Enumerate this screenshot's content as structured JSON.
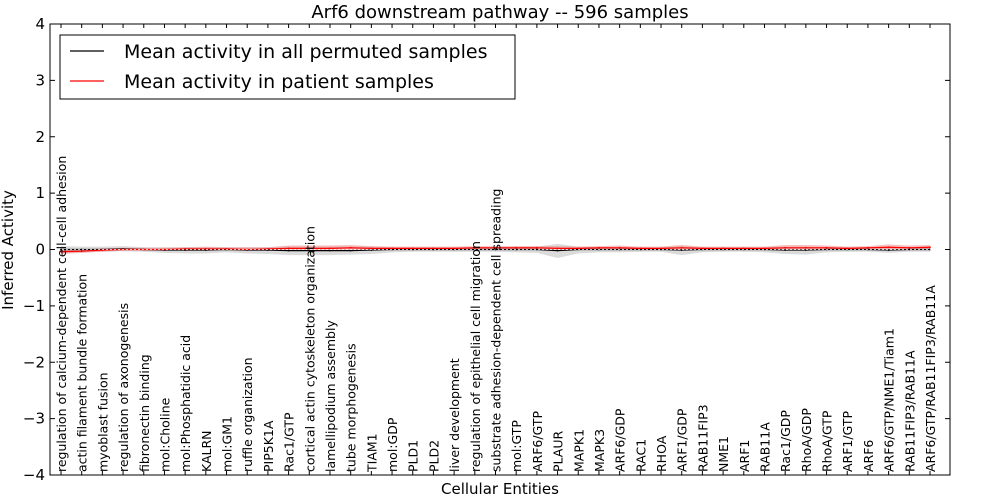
{
  "chart_data": {
    "type": "line",
    "title": "Arf6 downstream pathway -- 596 samples",
    "xlabel": "Cellular Entities",
    "ylabel": "Inferred Activity",
    "ylim": [
      -4,
      4
    ],
    "yticks": [
      -4,
      -3,
      -2,
      -1,
      0,
      1,
      2,
      3,
      4
    ],
    "ytick_labels": [
      "−4",
      "−3",
      "−2",
      "−1",
      "0",
      "1",
      "2",
      "3",
      "4"
    ],
    "legend_position": "top-left",
    "categories": [
      "regulation of calcium-dependent cell-cell adhesion",
      "actin filament bundle formation",
      "myoblast fusion",
      "regulation of axonogenesis",
      "fibronectin binding",
      "mol:Choline",
      "mol:Phosphatidic acid",
      "KALRN",
      "mol:GM1",
      "ruffle organization",
      "PIP5K1A",
      "Rac1/GTP",
      "cortical actin cytoskeleton organization",
      "lamellipodium assembly",
      "tube morphogenesis",
      "TIAM1",
      "mol:GDP",
      "PLD1",
      "PLD2",
      "liver development",
      "regulation of epithelial cell migration",
      "substrate adhesion-dependent cell spreading",
      "mol:GTP",
      "ARF6/GTP",
      "PLAUR",
      "MAPK1",
      "MAPK3",
      "ARF6/GDP",
      "RAC1",
      "RHOA",
      "ARF1/GDP",
      "RAB11FIP3",
      "NME1",
      "ARF1",
      "RAB11A",
      "Rac1/GDP",
      "RhoA/GDP",
      "RhoA/GTP",
      "ARF1/GTP",
      "ARF6",
      "ARF6/GTP/NME1/Tiam1",
      "RAB11FIP3/RAB11A",
      "ARF6/GTP/RAB11FIP3/RAB11A"
    ],
    "series": [
      {
        "name": "Mean activity in all permuted samples",
        "color": "#000000",
        "band_color": "#b0b0b0",
        "values": [
          0.0,
          0.0,
          0.0,
          0.01,
          0.0,
          -0.01,
          -0.01,
          -0.01,
          0.0,
          -0.01,
          -0.01,
          -0.02,
          -0.02,
          -0.02,
          -0.02,
          -0.01,
          0.0,
          0.0,
          0.0,
          0.0,
          0.0,
          0.0,
          0.0,
          0.0,
          -0.02,
          0.0,
          0.0,
          0.0,
          0.0,
          0.0,
          -0.01,
          0.0,
          0.0,
          0.0,
          0.0,
          -0.01,
          -0.01,
          0.0,
          0.0,
          0.0,
          -0.01,
          0.0,
          0.0
        ],
        "lower": [
          -0.06,
          -0.05,
          -0.04,
          -0.03,
          -0.04,
          -0.06,
          -0.07,
          -0.07,
          -0.05,
          -0.07,
          -0.08,
          -0.1,
          -0.1,
          -0.1,
          -0.09,
          -0.08,
          -0.05,
          -0.04,
          -0.04,
          -0.04,
          -0.04,
          -0.04,
          -0.05,
          -0.06,
          -0.15,
          -0.07,
          -0.05,
          -0.05,
          -0.04,
          -0.04,
          -0.1,
          -0.05,
          -0.04,
          -0.04,
          -0.05,
          -0.08,
          -0.09,
          -0.05,
          -0.04,
          -0.04,
          -0.06,
          -0.04,
          -0.04
        ],
        "upper": [
          0.06,
          0.05,
          0.05,
          0.06,
          0.04,
          0.04,
          0.04,
          0.04,
          0.04,
          0.04,
          0.04,
          0.05,
          0.05,
          0.05,
          0.05,
          0.05,
          0.04,
          0.04,
          0.04,
          0.04,
          0.04,
          0.04,
          0.05,
          0.05,
          0.1,
          0.05,
          0.04,
          0.04,
          0.04,
          0.04,
          0.06,
          0.04,
          0.04,
          0.04,
          0.04,
          0.05,
          0.05,
          0.04,
          0.04,
          0.04,
          0.05,
          0.04,
          0.04
        ]
      },
      {
        "name": "Mean activity in patient samples",
        "color": "#ff0000",
        "band_color": "#f08080",
        "values": [
          -0.04,
          -0.03,
          -0.01,
          0.0,
          0.0,
          0.0,
          0.01,
          0.01,
          0.01,
          0.0,
          0.01,
          0.02,
          0.02,
          0.02,
          0.03,
          0.02,
          0.02,
          0.02,
          0.02,
          0.02,
          0.03,
          0.03,
          0.03,
          0.03,
          0.02,
          0.02,
          0.03,
          0.03,
          0.02,
          0.02,
          0.03,
          0.02,
          0.02,
          0.02,
          0.02,
          0.03,
          0.03,
          0.03,
          0.02,
          0.03,
          0.04,
          0.03,
          0.04
        ],
        "lower": [
          -0.08,
          -0.06,
          -0.04,
          -0.02,
          -0.02,
          -0.01,
          -0.01,
          -0.01,
          -0.01,
          -0.02,
          -0.01,
          -0.01,
          -0.01,
          -0.01,
          -0.01,
          -0.01,
          -0.01,
          -0.01,
          -0.01,
          -0.01,
          0.0,
          0.0,
          0.0,
          0.0,
          -0.02,
          -0.01,
          0.0,
          0.0,
          -0.01,
          -0.01,
          -0.01,
          -0.01,
          -0.01,
          -0.01,
          -0.01,
          -0.01,
          -0.01,
          0.0,
          -0.01,
          0.0,
          0.0,
          0.0,
          0.0
        ],
        "upper": [
          0.0,
          0.0,
          0.02,
          0.03,
          0.03,
          0.03,
          0.04,
          0.05,
          0.04,
          0.04,
          0.04,
          0.07,
          0.07,
          0.07,
          0.08,
          0.06,
          0.05,
          0.05,
          0.05,
          0.05,
          0.06,
          0.06,
          0.06,
          0.06,
          0.06,
          0.05,
          0.06,
          0.07,
          0.05,
          0.05,
          0.08,
          0.05,
          0.05,
          0.05,
          0.05,
          0.08,
          0.08,
          0.07,
          0.05,
          0.06,
          0.09,
          0.07,
          0.08
        ]
      }
    ]
  }
}
